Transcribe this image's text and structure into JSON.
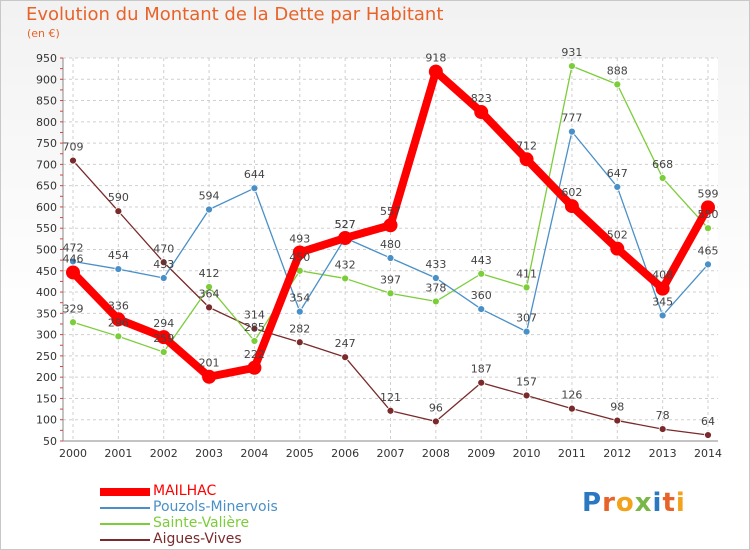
{
  "title": "Evolution du Montant de la Dette par Habitant",
  "unit": "(en €)",
  "logo": {
    "letters": [
      "P",
      "r",
      "o",
      "x",
      "i",
      "t",
      "i"
    ],
    "colors": [
      "#2a78c2",
      "#e8632a",
      "#f2a21b",
      "#7ab648",
      "#2a78c2",
      "#e8632a",
      "#f2a21b"
    ]
  },
  "chart_data": {
    "type": "line",
    "title": "Evolution du Montant de la Dette par Habitant",
    "ylabel": "(en €)",
    "xlabel": "",
    "x": [
      "2000",
      "2001",
      "2002",
      "2003",
      "2004",
      "2005",
      "2006",
      "2007",
      "2008",
      "2009",
      "2010",
      "2011",
      "2012",
      "2013",
      "2014"
    ],
    "ylim": [
      50,
      950
    ],
    "yticks": [
      50,
      100,
      150,
      200,
      250,
      300,
      350,
      400,
      450,
      500,
      550,
      600,
      650,
      700,
      750,
      800,
      850,
      900,
      950
    ],
    "grid": true,
    "legend_position": "bottom-left",
    "series": [
      {
        "name": "MAILHAC",
        "color": "#ff0000",
        "values": [
          446,
          336,
          294,
          201,
          222,
          493,
          527,
          557,
          918,
          823,
          712,
          602,
          502,
          408,
          599
        ]
      },
      {
        "name": "Pouzols-Minervois",
        "color": "#4a90c8",
        "values": [
          472,
          454,
          433,
          594,
          644,
          354,
          527,
          480,
          433,
          360,
          307,
          777,
          647,
          345,
          465
        ]
      },
      {
        "name": "Sainte-Valière",
        "color": "#7ccd3a",
        "values": [
          329,
          296,
          259,
          412,
          285,
          450,
          432,
          397,
          378,
          443,
          411,
          931,
          888,
          668,
          550
        ]
      },
      {
        "name": "Aigues-Vives",
        "color": "#7a2a2a",
        "values": [
          709,
          590,
          470,
          364,
          314,
          282,
          247,
          121,
          96,
          187,
          157,
          126,
          98,
          78,
          64
        ]
      }
    ]
  }
}
